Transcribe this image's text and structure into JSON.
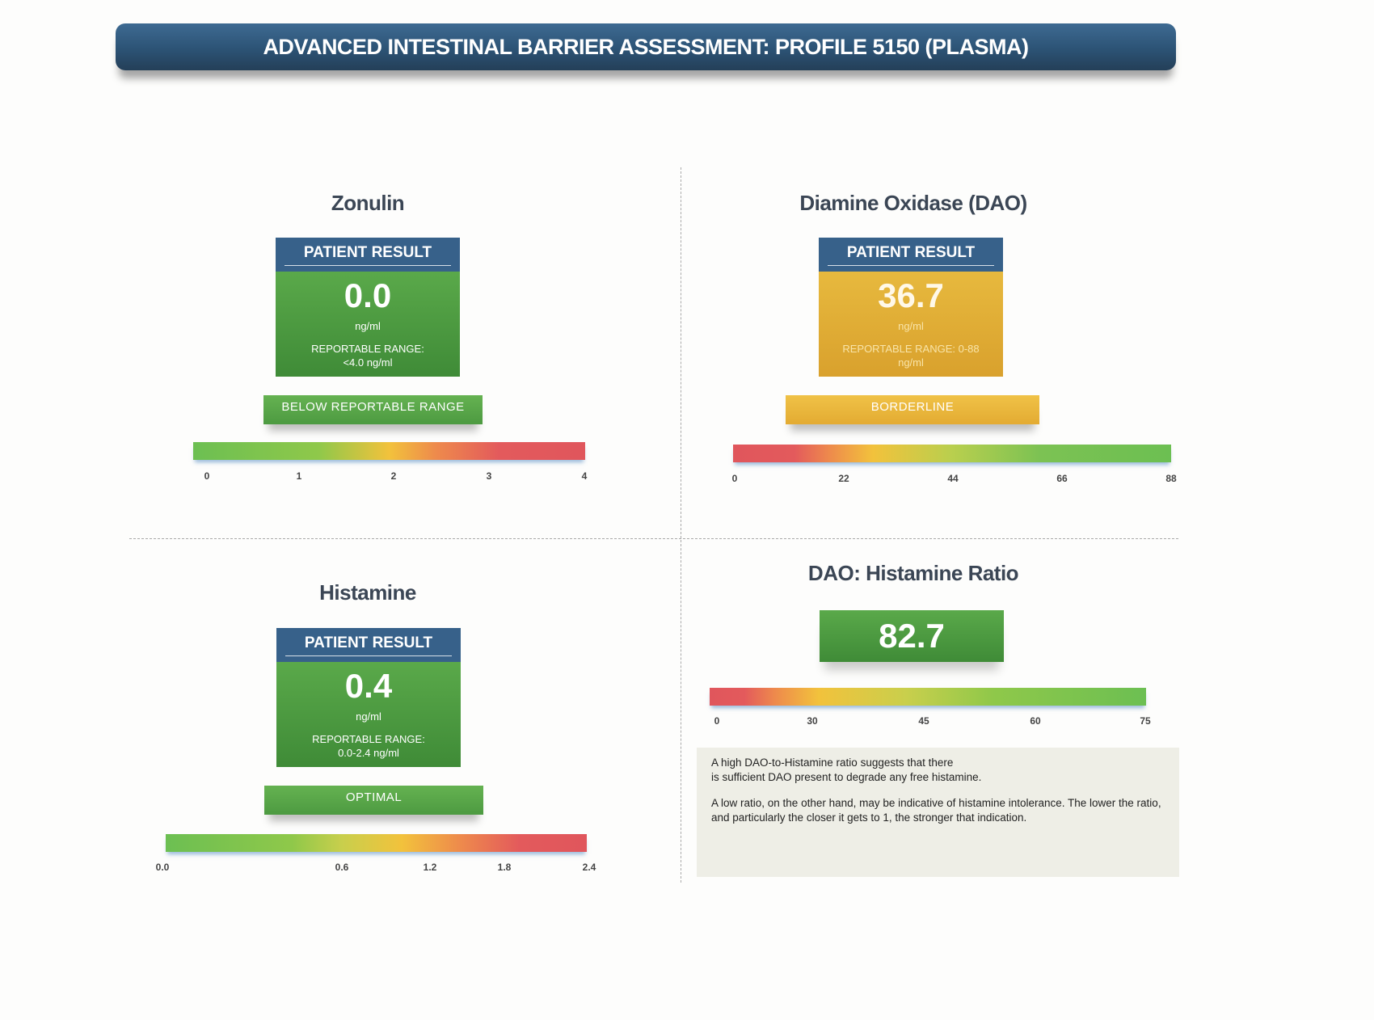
{
  "header": {
    "title": "ADVANCED INTESTINAL BARRIER ASSESSMENT: PROFILE 5150 (PLASMA)"
  },
  "colors": {
    "banner": "#2c5375",
    "result_header": "#37618a",
    "green": "#4d9a41",
    "gold": "#e3ab32",
    "red": "#e0565c"
  },
  "zonulin": {
    "title": "Zonulin",
    "result_label": "PATIENT RESULT",
    "value": "0.0",
    "unit": "ng/ml",
    "range_label": "REPORTABLE RANGE:",
    "range_value": "<4.0 ng/ml",
    "status": "BELOW REPORTABLE RANGE",
    "scale_ticks": [
      "0",
      "1",
      "2",
      "3",
      "4"
    ],
    "scale_colors": "green-yellow-red"
  },
  "dao": {
    "title": "Diamine Oxidase (DAO)",
    "result_label": "PATIENT RESULT",
    "value": "36.7",
    "unit": "ng/ml",
    "range_label": "REPORTABLE RANGE: 0-88",
    "range_value": "ng/ml",
    "status": "BORDERLINE",
    "scale_ticks": [
      "0",
      "22",
      "44",
      "66",
      "88"
    ],
    "scale_colors": "red-yellow-green"
  },
  "histamine": {
    "title": "Histamine",
    "result_label": "PATIENT RESULT",
    "value": "0.4",
    "unit": "ng/ml",
    "range_label": "REPORTABLE RANGE:",
    "range_value": "0.0-2.4 ng/ml",
    "status": "OPTIMAL",
    "scale_ticks": [
      "0.0",
      "0.6",
      "1.2",
      "1.8",
      "2.4"
    ],
    "scale_colors": "green-yellow-red"
  },
  "ratio": {
    "title": "DAO: Histamine Ratio",
    "value": "82.7",
    "scale_ticks": [
      "0",
      "30",
      "45",
      "60",
      "75"
    ],
    "scale_colors": "red-yellow-green",
    "note_p1_line1": "A high DAO-to-Histamine ratio suggests that there",
    "note_p1_line2": "is sufficient DAO present to degrade any free histamine.",
    "note_p2_line1": "A low ratio, on the other hand, may be indicative of histamine intolerance. The lower the ratio,",
    "note_p2_line2": "and particularly the closer it gets to 1, the stronger that indication."
  }
}
